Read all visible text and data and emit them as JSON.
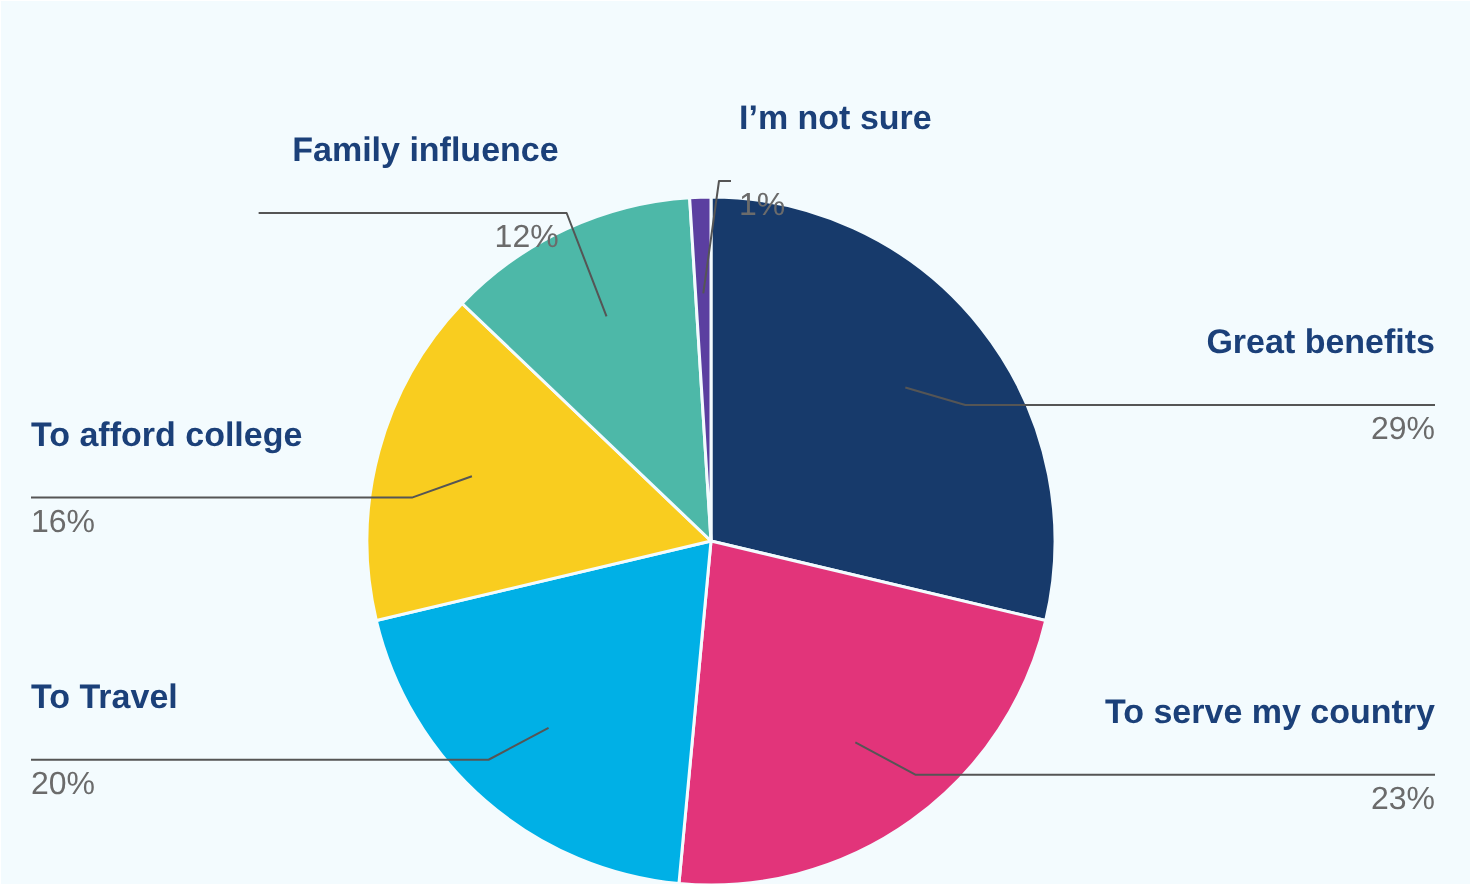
{
  "chart_data": {
    "type": "pie",
    "categories": [
      "Great benefits",
      "To serve my country",
      "To Travel",
      "To afford college",
      "Family influence",
      "I’m not sure"
    ],
    "values": [
      29,
      23,
      20,
      16,
      12,
      1
    ],
    "colors": [
      "#173a6b",
      "#e2347a",
      "#00b0e6",
      "#f9cd1f",
      "#4db8a8",
      "#5b3fa0"
    ],
    "value_labels": [
      "29%",
      "23%",
      "20%",
      "16%",
      "12%",
      "1%"
    ]
  }
}
